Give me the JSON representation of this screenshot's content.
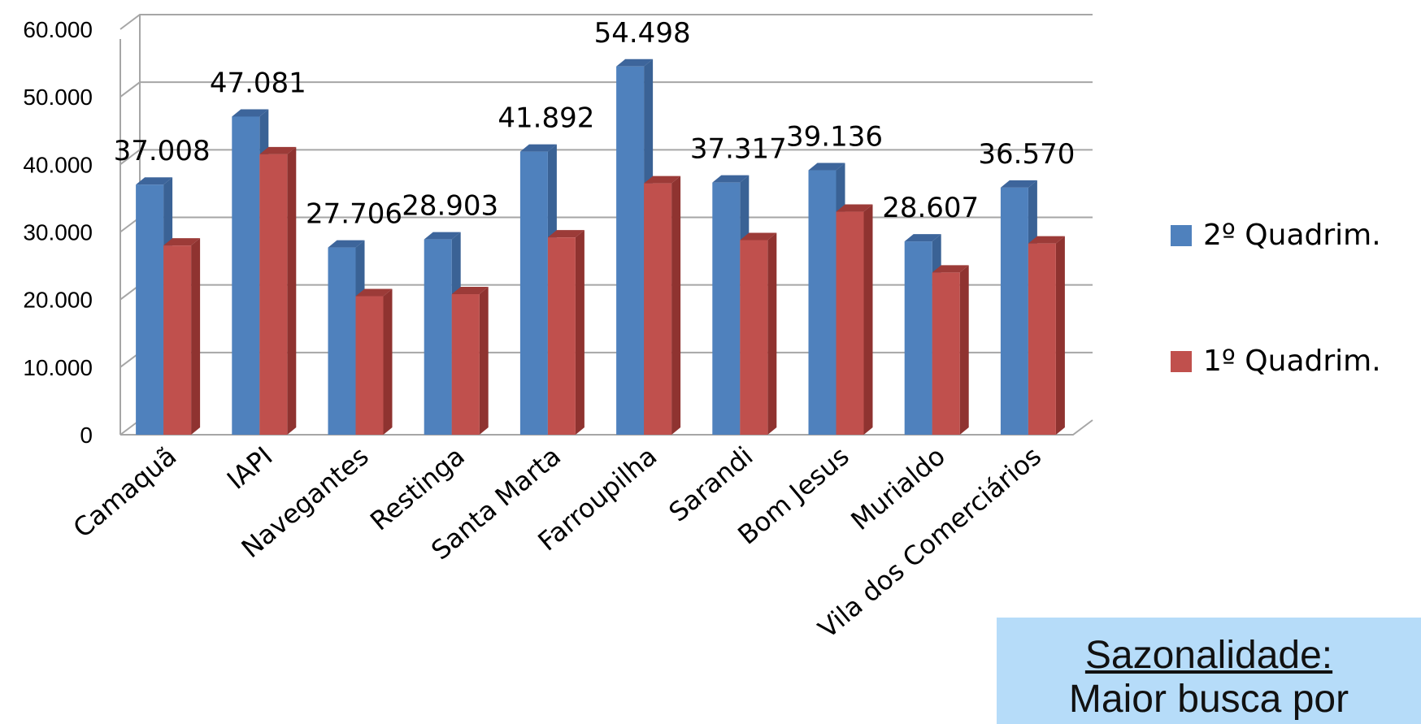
{
  "chart_data": {
    "type": "bar",
    "categories": [
      "Camaquã",
      "IAPI",
      "Navegantes",
      "Restinga",
      "Santa Marta",
      "Farroupilha",
      "Sarandi",
      "Bom Jesus",
      "Murialdo",
      "Vila dos Comerciários"
    ],
    "series": [
      {
        "name": "2º Quadrim.",
        "values": [
          37008,
          47081,
          27706,
          28903,
          41892,
          54498,
          37317,
          39136,
          28607,
          36570
        ],
        "labels": [
          "37.008",
          "47.081",
          "27.706",
          "28.903",
          "41.892",
          "54.498",
          "37.317",
          "39.136",
          "28.607",
          "36.570"
        ],
        "color": "#4f81bd",
        "side": "#3a6295",
        "top": "#3d659b"
      },
      {
        "name": "1º Quadrim.",
        "values": [
          28000,
          41500,
          20500,
          20800,
          29200,
          37200,
          28800,
          33000,
          24000,
          28300
        ],
        "color": "#c0504d",
        "side": "#8f3330",
        "top": "#9c3b38"
      }
    ],
    "ylim": [
      0,
      60000
    ],
    "yticks": [
      "0",
      "10.000",
      "20.000",
      "30.000",
      "40.000",
      "50.000",
      "60.000"
    ],
    "grid": true,
    "legend": "right"
  },
  "note": {
    "heading": "Sazonalidade:",
    "body": "Maior busca por"
  }
}
